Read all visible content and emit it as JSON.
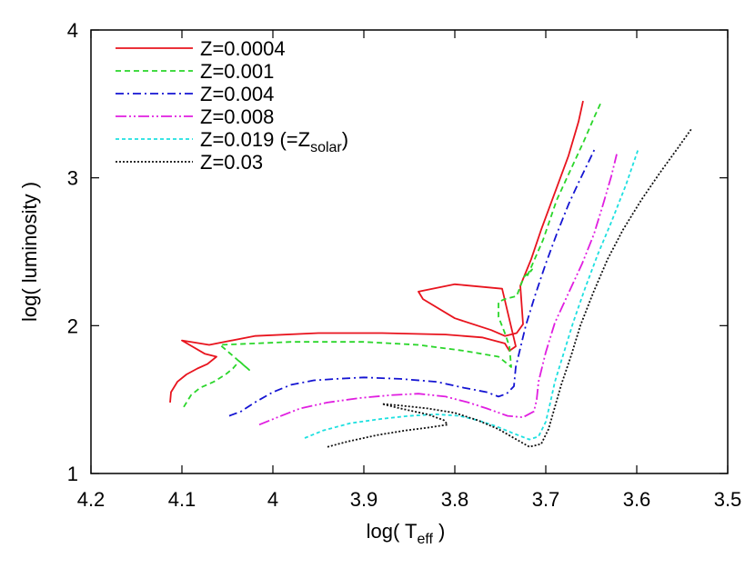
{
  "chart_data": {
    "type": "line",
    "xlabel": "log( T",
    "xlabel_sub": "eff",
    "xlabel_end": " )",
    "ylabel": "log( luminosity )",
    "xlim": [
      4.2,
      3.5
    ],
    "ylim": [
      1,
      4
    ],
    "xticks": [
      "4.2",
      "4.1",
      "4",
      "3.9",
      "3.8",
      "3.7",
      "3.6",
      "3.5"
    ],
    "xtick_values": [
      4.2,
      4.1,
      4.0,
      3.9,
      3.8,
      3.7,
      3.6,
      3.5
    ],
    "yticks": [
      "1",
      "2",
      "3",
      "4"
    ],
    "ytick_values": [
      1,
      2,
      3,
      4
    ],
    "legend_position": "top-left",
    "series": [
      {
        "name": "Z=0.0004",
        "color": "#e8141e",
        "dash": "solid",
        "x": [
          4.113,
          4.112,
          4.105,
          4.095,
          4.083,
          4.072,
          4.062,
          4.075,
          4.1,
          4.07,
          4.02,
          3.95,
          3.88,
          3.81,
          3.77,
          3.745,
          3.74,
          3.733,
          3.748,
          3.8,
          3.84,
          3.835,
          3.8,
          3.76,
          3.745,
          3.732,
          3.725,
          3.728,
          3.716,
          3.705,
          3.69,
          3.675,
          3.664,
          3.659
        ],
        "y": [
          1.48,
          1.55,
          1.62,
          1.67,
          1.71,
          1.74,
          1.79,
          1.81,
          1.9,
          1.87,
          1.93,
          1.95,
          1.95,
          1.94,
          1.92,
          1.88,
          1.83,
          1.86,
          2.25,
          2.28,
          2.23,
          2.18,
          2.05,
          1.97,
          1.93,
          1.95,
          2.01,
          2.27,
          2.45,
          2.65,
          2.9,
          3.15,
          3.38,
          3.52
        ]
      },
      {
        "name": "Z=0.001",
        "color": "#2ad62a",
        "dash": "6,4",
        "x": [
          4.098,
          4.09,
          4.08,
          4.065,
          4.052,
          4.044,
          4.037,
          4.026,
          4.058,
          3.98,
          3.9,
          3.84,
          3.79,
          3.752,
          3.742,
          3.738,
          3.74,
          3.745,
          3.752,
          3.752,
          3.745,
          3.732,
          3.724,
          3.715,
          3.72,
          3.703,
          3.688,
          3.673,
          3.658,
          3.646,
          3.64
        ],
        "y": [
          1.45,
          1.53,
          1.58,
          1.62,
          1.67,
          1.71,
          1.76,
          1.7,
          1.87,
          1.89,
          1.89,
          1.87,
          1.83,
          1.79,
          1.74,
          1.72,
          1.86,
          1.95,
          2.06,
          2.16,
          2.18,
          2.2,
          2.33,
          2.38,
          2.34,
          2.58,
          2.85,
          3.05,
          3.25,
          3.42,
          3.5
        ]
      },
      {
        "name": "Z=0.004",
        "color": "#1414d2",
        "dash": "9,4,2,4",
        "x": [
          4.048,
          4.035,
          4.02,
          4.0,
          3.98,
          3.955,
          3.93,
          3.9,
          3.86,
          3.82,
          3.79,
          3.765,
          3.752,
          3.743,
          3.735,
          3.733,
          3.722,
          3.712,
          3.7,
          3.688,
          3.675,
          3.663,
          3.652,
          3.645
        ],
        "y": [
          1.39,
          1.42,
          1.48,
          1.55,
          1.6,
          1.63,
          1.64,
          1.65,
          1.64,
          1.62,
          1.58,
          1.55,
          1.52,
          1.54,
          1.59,
          1.72,
          2.0,
          2.2,
          2.42,
          2.62,
          2.82,
          2.98,
          3.12,
          3.21
        ]
      },
      {
        "name": "Z=0.008",
        "color": "#e01ee0",
        "dash": "12,3,2,3,2,3",
        "x": [
          4.015,
          3.995,
          3.97,
          3.94,
          3.905,
          3.87,
          3.84,
          3.81,
          3.785,
          3.765,
          3.742,
          3.725,
          3.713,
          3.71,
          3.708,
          3.7,
          3.69,
          3.675,
          3.66,
          3.647,
          3.637,
          3.628,
          3.622
        ],
        "y": [
          1.33,
          1.38,
          1.44,
          1.48,
          1.51,
          1.53,
          1.54,
          1.52,
          1.48,
          1.44,
          1.39,
          1.38,
          1.42,
          1.5,
          1.62,
          1.82,
          2.02,
          2.22,
          2.42,
          2.62,
          2.82,
          3.01,
          3.16
        ]
      },
      {
        "name": "Z=0.019 (=Z",
        "name_sub": "solar",
        "name_end": ")",
        "color": "#1ee0e0",
        "dash": "4,3",
        "x": [
          3.965,
          3.945,
          3.915,
          3.88,
          3.85,
          3.82,
          3.795,
          3.775,
          3.755,
          3.735,
          3.718,
          3.708,
          3.7,
          3.695,
          3.69,
          3.68,
          3.67,
          3.657,
          3.643,
          3.628,
          3.612,
          3.598
        ],
        "y": [
          1.24,
          1.29,
          1.34,
          1.37,
          1.39,
          1.4,
          1.39,
          1.36,
          1.32,
          1.27,
          1.23,
          1.25,
          1.35,
          1.48,
          1.62,
          1.82,
          2.02,
          2.25,
          2.48,
          2.7,
          2.95,
          3.2
        ]
      },
      {
        "name": "Z=0.03",
        "color": "#111111",
        "dash": "2,2",
        "x": [
          3.94,
          3.915,
          3.885,
          3.855,
          3.83,
          3.808,
          3.812,
          3.83,
          3.86,
          3.88,
          3.86,
          3.83,
          3.8,
          3.775,
          3.752,
          3.735,
          3.718,
          3.705,
          3.697,
          3.69,
          3.683,
          3.672,
          3.662,
          3.648,
          3.632,
          3.615,
          3.595,
          3.575,
          3.555,
          3.54
        ],
        "y": [
          1.18,
          1.22,
          1.26,
          1.29,
          1.31,
          1.33,
          1.36,
          1.4,
          1.44,
          1.47,
          1.46,
          1.44,
          1.41,
          1.36,
          1.3,
          1.24,
          1.18,
          1.2,
          1.3,
          1.45,
          1.6,
          1.8,
          2.0,
          2.22,
          2.45,
          2.65,
          2.85,
          3.03,
          3.2,
          3.33
        ]
      }
    ]
  }
}
